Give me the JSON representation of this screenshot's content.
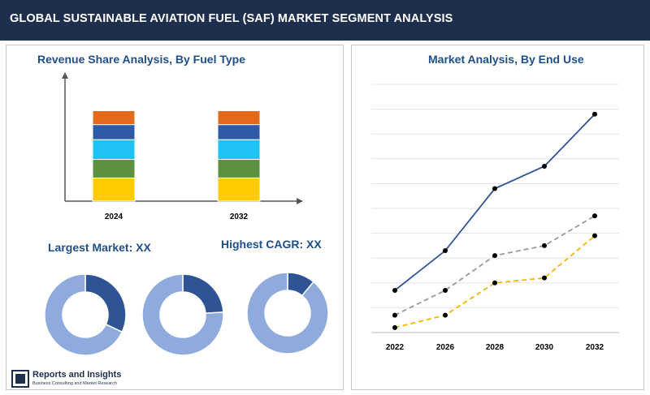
{
  "header": {
    "title": "GLOBAL SUSTAINABLE AVIATION FUEL (SAF) MARKET SEGMENT ANALYSIS"
  },
  "fuel_type": {
    "title": "Revenue Share Analysis, By Fuel Type"
  },
  "end_use": {
    "title": "Market Analysis, By End Use"
  },
  "largest_market": {
    "label": "Largest Market: XX"
  },
  "highest_cagr": {
    "label": "Highest CAGR: XX"
  },
  "logo": {
    "name": "Reports and Insights",
    "tagline": "Business Consulting and Market Research"
  },
  "colors": {
    "header_bg": "#1e2f4d",
    "title_text": "#1e4f8a",
    "stack": [
      "#ffcc00",
      "#5b9140",
      "#1ec2f5",
      "#2e5aa8",
      "#e36a1a"
    ],
    "donut_main": "#8faadc",
    "donut_accent": "#2f5496",
    "line_solid": "#2f5496",
    "line_dashed_gray": "#999999",
    "line_dashed_yellow": "#f2b705"
  },
  "chart_data": [
    {
      "type": "bar",
      "stacked": true,
      "title": "Revenue Share Analysis, By Fuel Type",
      "categories": [
        "2024",
        "2032"
      ],
      "series": [
        {
          "values": [
            20,
            20
          ]
        },
        {
          "values": [
            16,
            16
          ]
        },
        {
          "values": [
            17,
            17
          ]
        },
        {
          "values": [
            13,
            13
          ]
        },
        {
          "values": [
            12,
            12
          ]
        }
      ],
      "ylim": [
        0,
        100
      ]
    },
    {
      "type": "pie",
      "donut": true,
      "values": [
        32,
        68
      ]
    },
    {
      "type": "pie",
      "donut": true,
      "values": [
        24,
        76
      ]
    },
    {
      "type": "pie",
      "donut": true,
      "values": [
        11,
        89
      ]
    },
    {
      "type": "line",
      "title": "Market Analysis, By End Use",
      "x": [
        "2022",
        "2026",
        "2028",
        "2030",
        "2032"
      ],
      "series": [
        {
          "style": "solid",
          "values": [
            17,
            33,
            58,
            67,
            88
          ]
        },
        {
          "style": "dashed",
          "values": [
            7,
            17,
            31,
            35,
            47
          ]
        },
        {
          "style": "dashed",
          "values": [
            2,
            7,
            20,
            22,
            39
          ]
        }
      ],
      "ylim": [
        0,
        100
      ],
      "grid": true
    }
  ]
}
